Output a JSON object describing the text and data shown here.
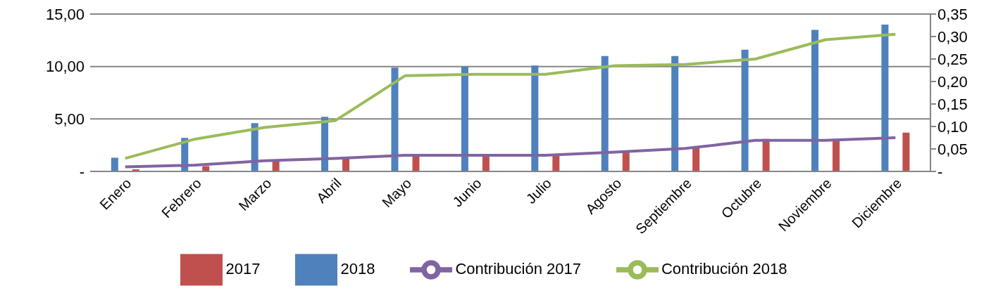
{
  "chart_data": {
    "type": "bar",
    "categories": [
      "Enero",
      "Febrero",
      "Marzo",
      "Abril",
      "Mayo",
      "Junio",
      "Julio",
      "Agosto",
      "Septiembre",
      "Octubre",
      "Noviembre",
      "Diciembre"
    ],
    "series": [
      {
        "name": "2018",
        "color": "#4f81bd",
        "values": [
          1.3,
          3.2,
          4.6,
          5.2,
          9.9,
          10.0,
          10.1,
          11.0,
          11.0,
          11.6,
          13.5,
          14.0
        ]
      },
      {
        "name": "2017",
        "color": "#c0504d",
        "values": [
          0.2,
          0.5,
          1.1,
          1.4,
          1.5,
          1.5,
          1.5,
          1.8,
          2.4,
          3.1,
          3.1,
          3.7
        ]
      },
      {
        "name": "Contribución 2018",
        "type": "line",
        "axis": "y2",
        "color": "#9bbb59",
        "values": [
          0.029,
          0.072,
          0.098,
          0.113,
          0.213,
          0.216,
          0.216,
          0.235,
          0.238,
          0.25,
          0.293,
          0.305
        ]
      },
      {
        "name": "Contribución 2017",
        "type": "line",
        "axis": "y2",
        "color": "#8064a2",
        "values": [
          0.01,
          0.014,
          0.024,
          0.029,
          0.036,
          0.036,
          0.036,
          0.043,
          0.051,
          0.069,
          0.069,
          0.075
        ]
      }
    ],
    "ylim": [
      0,
      15
    ],
    "yticks": [
      {
        "value": 0,
        "label": "-"
      },
      {
        "value": 5,
        "label": "5,00"
      },
      {
        "value": 10,
        "label": "10,00"
      },
      {
        "value": 15,
        "label": "15,00"
      }
    ],
    "y2lim": [
      0,
      0.35
    ],
    "y2ticks": [
      {
        "value": 0,
        "label": "-"
      },
      {
        "value": 0.05,
        "label": "0,05"
      },
      {
        "value": 0.1,
        "label": "0,10"
      },
      {
        "value": 0.15,
        "label": "0,15"
      },
      {
        "value": 0.2,
        "label": "0,20"
      },
      {
        "value": 0.25,
        "label": "0,25"
      },
      {
        "value": 0.3,
        "label": "0,30"
      },
      {
        "value": 0.35,
        "label": "0,35"
      }
    ],
    "grid": "y",
    "legend": "bottom",
    "marker": "none",
    "line_style": "solid"
  }
}
